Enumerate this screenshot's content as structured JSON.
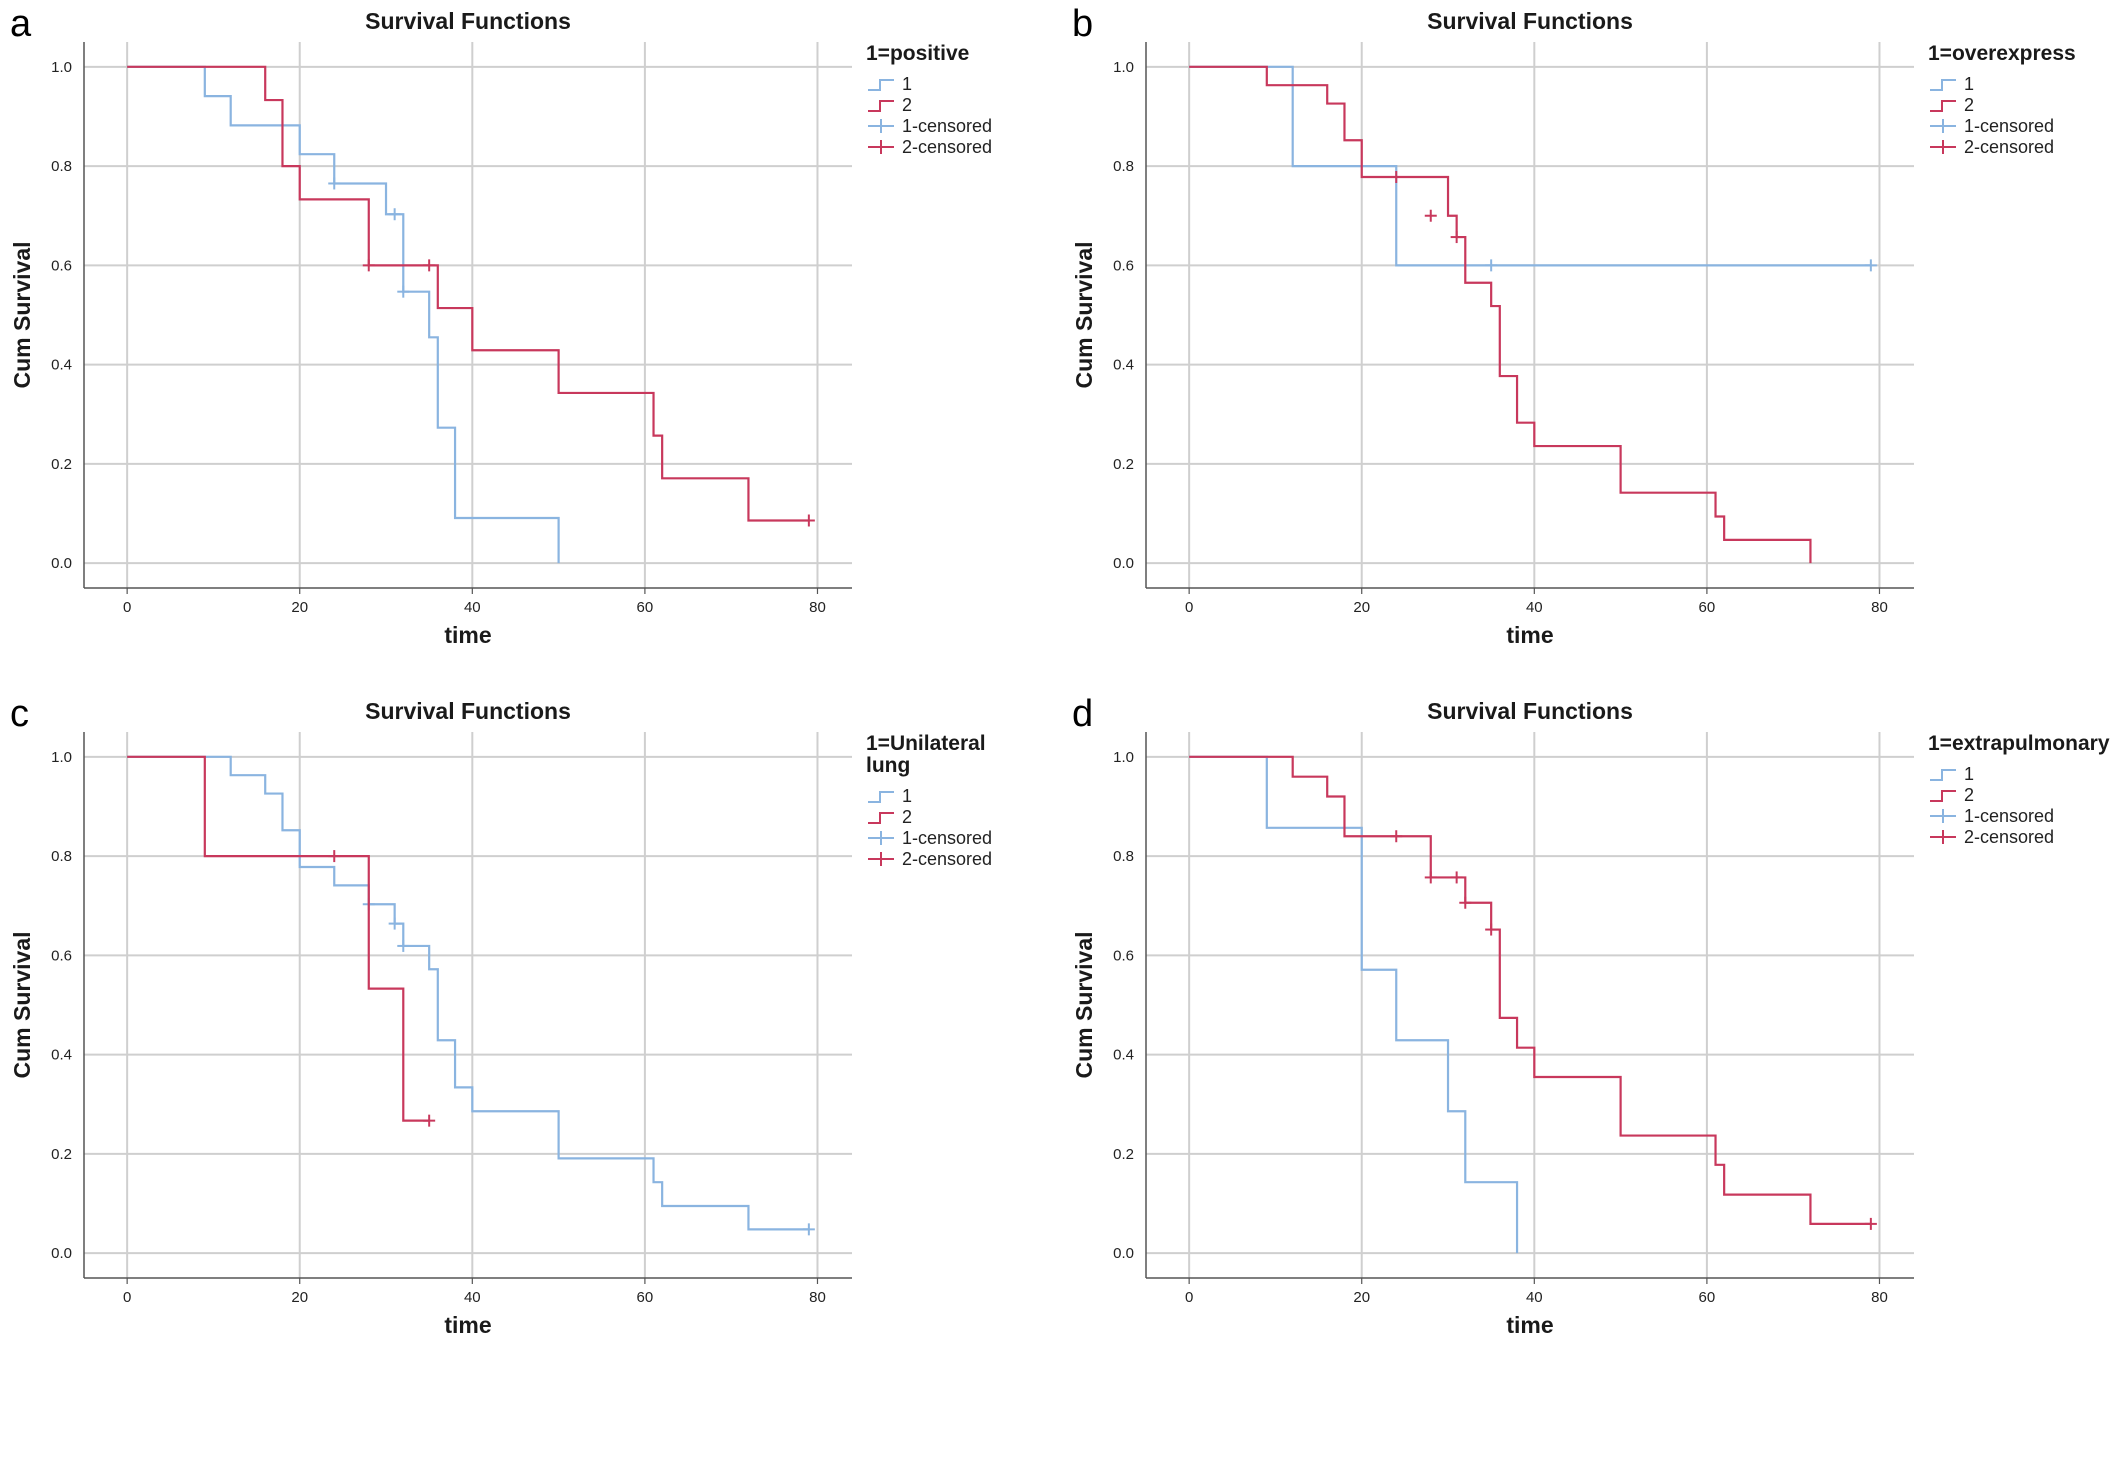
{
  "colors": {
    "group1": "#8AB4E0",
    "group2": "#C8385C",
    "grid": "#cfcfcf",
    "axis": "#555555"
  },
  "chart_data": [
    {
      "type": "line",
      "panel_label": "a",
      "title": "Survival Functions",
      "xlabel": "time",
      "ylabel": "Cum Survival",
      "xlim": [
        -5,
        84
      ],
      "ylim": [
        -0.05,
        1.05
      ],
      "xticks": [
        "0",
        "20",
        "40",
        "60",
        "80"
      ],
      "yticks": [
        "0.0",
        "0.2",
        "0.4",
        "0.6",
        "0.8",
        "1.0"
      ],
      "legend": {
        "title": [
          "1=positive"
        ],
        "entries": [
          "1",
          "2",
          "1-censored",
          "2-censored"
        ]
      },
      "series": [
        {
          "name": "1",
          "step": [
            [
              0,
              1.0
            ],
            [
              9,
              0.941
            ],
            [
              12,
              0.882
            ],
            [
              20,
              0.824
            ],
            [
              24,
              0.765
            ],
            [
              30,
              0.703
            ],
            [
              32,
              0.547
            ],
            [
              35,
              0.455
            ],
            [
              36,
              0.273
            ],
            [
              38,
              0.091
            ],
            [
              50,
              0.0
            ]
          ],
          "end": 50,
          "censored": [
            [
              24,
              0.765
            ],
            [
              31,
              0.703
            ],
            [
              32,
              0.547
            ]
          ]
        },
        {
          "name": "2",
          "step": [
            [
              0,
              1.0
            ],
            [
              16,
              0.933
            ],
            [
              18,
              0.8
            ],
            [
              20,
              0.733
            ],
            [
              28,
              0.6
            ],
            [
              36,
              0.514
            ],
            [
              40,
              0.429
            ],
            [
              50,
              0.343
            ],
            [
              61,
              0.257
            ],
            [
              62,
              0.171
            ],
            [
              72,
              0.086
            ]
          ],
          "end": 79,
          "censored": [
            [
              28,
              0.6
            ],
            [
              35,
              0.6
            ],
            [
              79,
              0.086
            ]
          ]
        }
      ]
    },
    {
      "type": "line",
      "panel_label": "b",
      "title": "Survival Functions",
      "xlabel": "time",
      "ylabel": "Cum Survival",
      "xlim": [
        -5,
        84
      ],
      "ylim": [
        -0.05,
        1.05
      ],
      "xticks": [
        "0",
        "20",
        "40",
        "60",
        "80"
      ],
      "yticks": [
        "0.0",
        "0.2",
        "0.4",
        "0.6",
        "0.8",
        "1.0"
      ],
      "legend": {
        "title": [
          "1=overexpress"
        ],
        "entries": [
          "1",
          "2",
          "1-censored",
          "2-censored"
        ]
      },
      "series": [
        {
          "name": "1",
          "step": [
            [
              0,
              1.0
            ],
            [
              12,
              0.8
            ],
            [
              24,
              0.6
            ]
          ],
          "end": 79,
          "censored": [
            [
              35,
              0.6
            ],
            [
              79,
              0.6
            ]
          ]
        },
        {
          "name": "2",
          "step": [
            [
              0,
              1.0
            ],
            [
              9,
              0.963
            ],
            [
              16,
              0.926
            ],
            [
              18,
              0.852
            ],
            [
              20,
              0.778
            ],
            [
              30,
              0.7
            ],
            [
              31,
              0.657
            ],
            [
              32,
              0.565
            ],
            [
              35,
              0.518
            ],
            [
              36,
              0.377
            ],
            [
              38,
              0.283
            ],
            [
              40,
              0.236
            ],
            [
              50,
              0.142
            ],
            [
              61,
              0.094
            ],
            [
              62,
              0.047
            ],
            [
              72,
              0.0
            ]
          ],
          "end": 72,
          "censored": [
            [
              24,
              0.778
            ],
            [
              28,
              0.7
            ],
            [
              31,
              0.657
            ]
          ]
        }
      ]
    },
    {
      "type": "line",
      "panel_label": "c",
      "title": "Survival Functions",
      "xlabel": "time",
      "ylabel": "Cum Survival",
      "xlim": [
        -5,
        84
      ],
      "ylim": [
        -0.05,
        1.05
      ],
      "xticks": [
        "0",
        "20",
        "40",
        "60",
        "80"
      ],
      "yticks": [
        "0.0",
        "0.2",
        "0.4",
        "0.6",
        "0.8",
        "1.0"
      ],
      "legend": {
        "title": [
          "1=Unilateral",
          "lung"
        ],
        "entries": [
          "1",
          "2",
          "1-censored",
          "2-censored"
        ]
      },
      "series": [
        {
          "name": "1",
          "step": [
            [
              0,
              1.0
            ],
            [
              12,
              0.963
            ],
            [
              16,
              0.926
            ],
            [
              18,
              0.852
            ],
            [
              20,
              0.778
            ],
            [
              24,
              0.741
            ],
            [
              28,
              0.703
            ],
            [
              31,
              0.664
            ],
            [
              32,
              0.619
            ],
            [
              35,
              0.572
            ],
            [
              36,
              0.429
            ],
            [
              38,
              0.334
            ],
            [
              40,
              0.286
            ],
            [
              50,
              0.191
            ],
            [
              61,
              0.143
            ],
            [
              62,
              0.095
            ],
            [
              72,
              0.048
            ]
          ],
          "end": 79,
          "censored": [
            [
              28,
              0.703
            ],
            [
              31,
              0.664
            ],
            [
              32,
              0.619
            ],
            [
              79,
              0.048
            ]
          ]
        },
        {
          "name": "2",
          "step": [
            [
              0,
              1.0
            ],
            [
              9,
              0.8
            ],
            [
              28,
              0.533
            ],
            [
              32,
              0.267
            ]
          ],
          "end": 35,
          "censored": [
            [
              24,
              0.8
            ],
            [
              35,
              0.267
            ]
          ]
        }
      ]
    },
    {
      "type": "line",
      "panel_label": "d",
      "title": "Survival Functions",
      "xlabel": "time",
      "ylabel": "Cum Survival",
      "xlim": [
        -5,
        84
      ],
      "ylim": [
        -0.05,
        1.05
      ],
      "xticks": [
        "0",
        "20",
        "40",
        "60",
        "80"
      ],
      "yticks": [
        "0.0",
        "0.2",
        "0.4",
        "0.6",
        "0.8",
        "1.0"
      ],
      "legend": {
        "title": [
          "1=extrapulmonary"
        ],
        "entries": [
          "1",
          "2",
          "1-censored",
          "2-censored"
        ]
      },
      "series": [
        {
          "name": "1",
          "step": [
            [
              0,
              1.0
            ],
            [
              9,
              0.857
            ],
            [
              20,
              0.571
            ],
            [
              24,
              0.429
            ],
            [
              30,
              0.286
            ],
            [
              32,
              0.143
            ],
            [
              38,
              0.0
            ]
          ],
          "end": 38,
          "censored": []
        },
        {
          "name": "2",
          "step": [
            [
              0,
              1.0
            ],
            [
              12,
              0.96
            ],
            [
              16,
              0.92
            ],
            [
              18,
              0.84
            ],
            [
              28,
              0.757
            ],
            [
              32,
              0.706
            ],
            [
              35,
              0.652
            ],
            [
              36,
              0.474
            ],
            [
              38,
              0.414
            ],
            [
              40,
              0.355
            ],
            [
              50,
              0.237
            ],
            [
              61,
              0.178
            ],
            [
              62,
              0.118
            ],
            [
              72,
              0.059
            ]
          ],
          "end": 79,
          "censored": [
            [
              24,
              0.84
            ],
            [
              28,
              0.757
            ],
            [
              31,
              0.757
            ],
            [
              32,
              0.706
            ],
            [
              35,
              0.652
            ],
            [
              79,
              0.059
            ]
          ]
        }
      ]
    }
  ]
}
